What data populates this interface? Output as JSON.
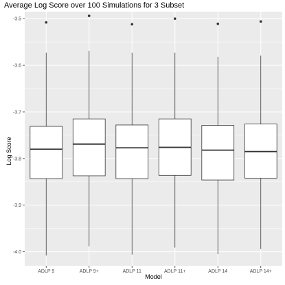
{
  "chart_data": {
    "type": "boxplot",
    "title": "Average Log Score over 100 Simulations for 3 Subset",
    "xlabel": "Model",
    "ylabel": "Log Score",
    "ylim": [
      -4.03,
      -3.485
    ],
    "yticks": [
      -3.5,
      -3.6,
      -3.7,
      -3.8,
      -3.9,
      -4.0
    ],
    "ytick_labels": [
      "-3.5",
      "-3.6",
      "-3.7",
      "-3.8",
      "-3.9",
      "-4.0"
    ],
    "grid": true,
    "categories": [
      "ADLP 9",
      "ADLP 9+",
      "ADLP 11",
      "ADLP 11+",
      "ADLP 14",
      "ADLP 14+"
    ],
    "boxes": [
      {
        "lower_whisker": -4.008,
        "q1": -3.843,
        "median": -3.78,
        "q3": -3.731,
        "upper_whisker": -3.573,
        "outliers": [
          -3.508
        ]
      },
      {
        "lower_whisker": -3.988,
        "q1": -3.837,
        "median": -3.769,
        "q3": -3.715,
        "upper_whisker": -3.569,
        "outliers": [
          -3.494
        ]
      },
      {
        "lower_whisker": -4.006,
        "q1": -3.843,
        "median": -3.777,
        "q3": -3.728,
        "upper_whisker": -3.573,
        "outliers": [
          -3.512
        ]
      },
      {
        "lower_whisker": -3.991,
        "q1": -3.836,
        "median": -3.776,
        "q3": -3.715,
        "upper_whisker": -3.573,
        "outliers": [
          -3.5
        ]
      },
      {
        "lower_whisker": -4.005,
        "q1": -3.846,
        "median": -3.782,
        "q3": -3.729,
        "upper_whisker": -3.582,
        "outliers": [
          -3.511
        ]
      },
      {
        "lower_whisker": -3.994,
        "q1": -3.842,
        "median": -3.785,
        "q3": -3.726,
        "upper_whisker": -3.579,
        "outliers": [
          -3.506
        ]
      }
    ],
    "colors": {
      "panel": "#ebebeb",
      "grid_major": "#ffffff",
      "box_fill": "#ffffff",
      "box_line": "#333333",
      "tick_text": "#4d4d4d"
    }
  }
}
